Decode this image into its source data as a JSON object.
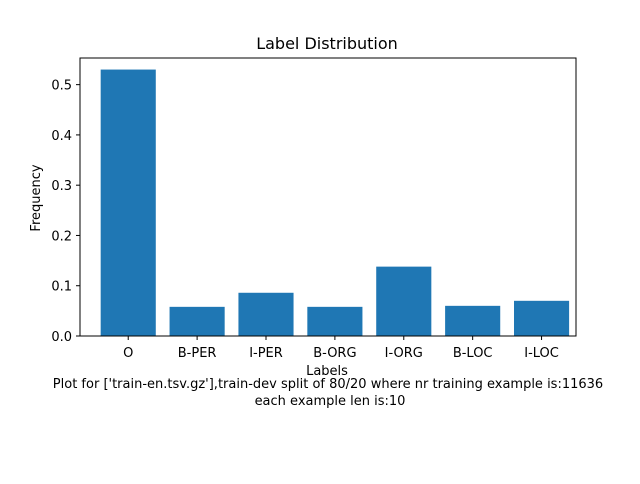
{
  "chart_data": {
    "type": "bar",
    "title": "Label Distribution",
    "xlabel": "Labels",
    "ylabel": "Frequency",
    "categories": [
      "O",
      "B-PER",
      "I-PER",
      "B-ORG",
      "I-ORG",
      "B-LOC",
      "I-LOC"
    ],
    "values": [
      0.53,
      0.058,
      0.086,
      0.058,
      0.138,
      0.06,
      0.07
    ],
    "ylim": [
      0,
      0.553
    ],
    "yticks": [
      0.0,
      0.1,
      0.2,
      0.3,
      0.4,
      0.5
    ],
    "ytick_labels": [
      "0.0",
      "0.1",
      "0.2",
      "0.3",
      "0.4",
      "0.5"
    ],
    "grid": false,
    "bar_color": "#1f77b4",
    "caption_lines": [
      "Plot for ['train-en.tsv.gz'],train-dev split of 80/20 where nr training example is:11636",
      "each example len is:10"
    ]
  }
}
